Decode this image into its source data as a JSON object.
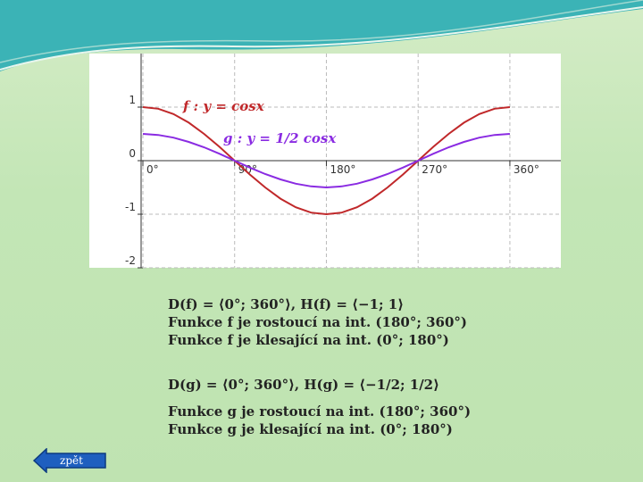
{
  "chart_data": {
    "type": "line",
    "x": [
      0,
      15,
      30,
      45,
      60,
      75,
      90,
      105,
      120,
      135,
      150,
      165,
      180,
      195,
      210,
      225,
      240,
      255,
      270,
      285,
      300,
      315,
      330,
      345,
      360
    ],
    "series": [
      {
        "name": "f : y = cosx",
        "color": "#c0282a",
        "values": [
          1,
          0.97,
          0.87,
          0.71,
          0.5,
          0.26,
          0,
          -0.26,
          -0.5,
          -0.71,
          -0.87,
          -0.97,
          -1,
          -0.97,
          -0.87,
          -0.71,
          -0.5,
          -0.26,
          0,
          0.26,
          0.5,
          0.71,
          0.87,
          0.97,
          1
        ]
      },
      {
        "name": "g : y = 1/2 cosx",
        "color": "#8a2be2",
        "values": [
          0.5,
          0.48,
          0.43,
          0.35,
          0.25,
          0.13,
          0,
          -0.13,
          -0.25,
          -0.35,
          -0.43,
          -0.48,
          -0.5,
          -0.48,
          -0.43,
          -0.35,
          -0.25,
          -0.13,
          0,
          0.13,
          0.25,
          0.35,
          0.43,
          0.48,
          0.5
        ]
      }
    ],
    "xlim": [
      0,
      410
    ],
    "ylim": [
      -2,
      2
    ],
    "xticks": [
      {
        "value": 0,
        "label": "0°"
      },
      {
        "value": 90,
        "label": "90°"
      },
      {
        "value": 180,
        "label": "180°"
      },
      {
        "value": 270,
        "label": "270°"
      },
      {
        "value": 360,
        "label": "360°"
      }
    ],
    "yticks": [
      1,
      0,
      -1,
      -2
    ],
    "grid": true
  },
  "text": {
    "lines_f": [
      "D(f) = ⟨0°; 360°⟩, H(f) = ⟨−1; 1⟩",
      "Funkce f je rostoucí na int. (180°; 360°)",
      "Funkce f je klesající na int. (0°; 180°)"
    ],
    "lines_g": [
      "D(g) = ⟨0°; 360°⟩, H(g) = ⟨−1/2; 1/2⟩",
      "Funkce g je rostoucí na int. (180°; 360°)",
      "Funkce g je klesající na int. (0°; 180°)"
    ],
    "button": "zpět"
  }
}
